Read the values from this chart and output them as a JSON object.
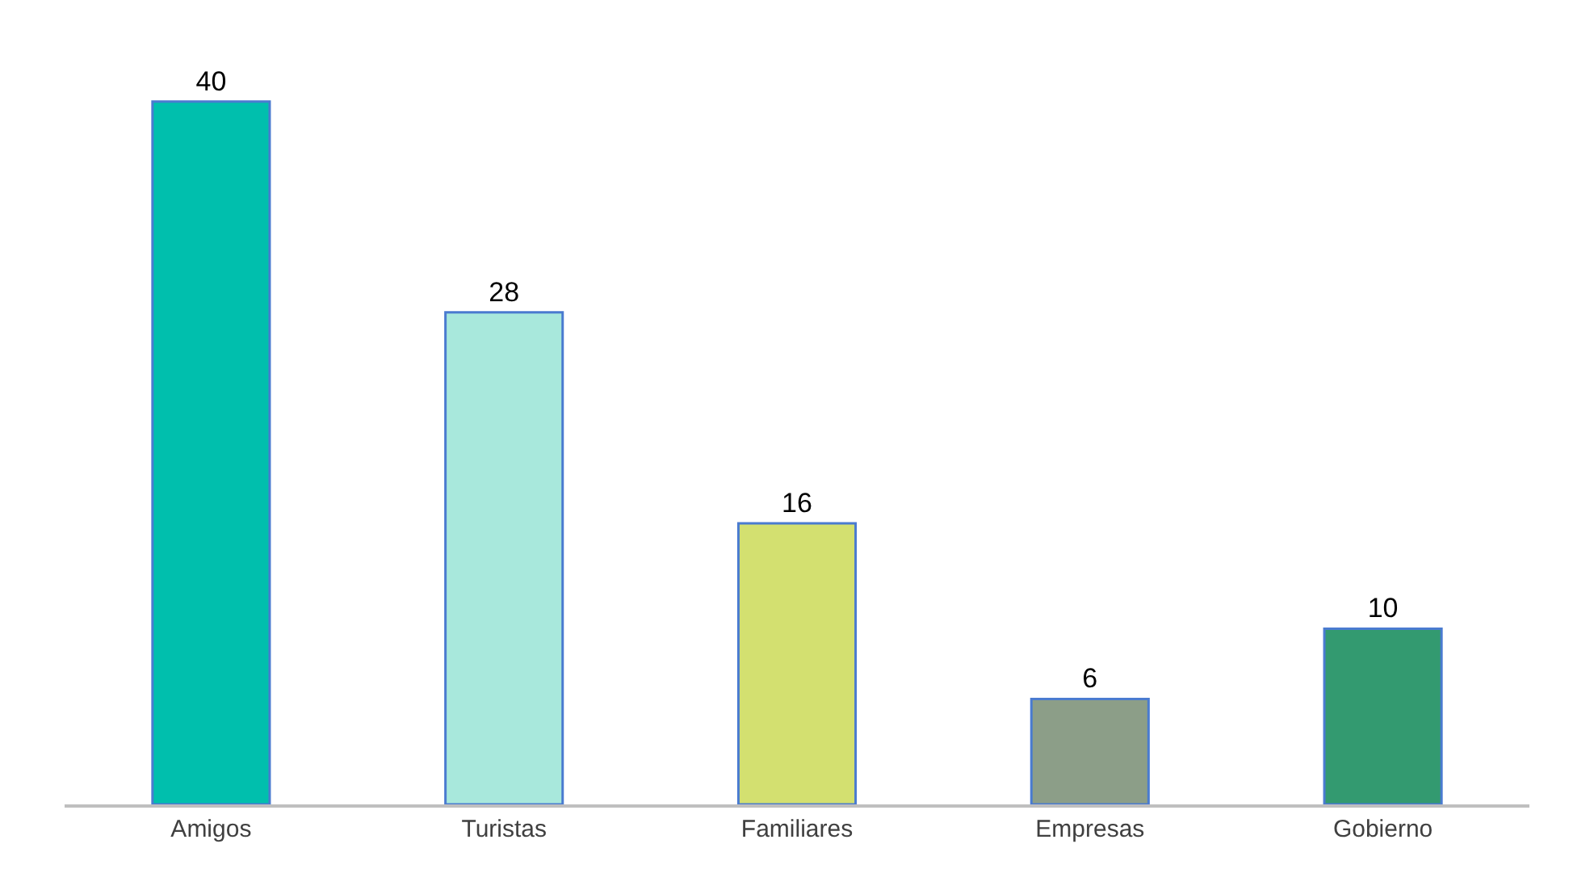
{
  "chart_data": {
    "type": "bar",
    "categories": [
      "Amigos",
      "Turistas",
      "Familiares",
      "Empresas",
      "Gobierno"
    ],
    "values": [
      40,
      28,
      16,
      6,
      10
    ],
    "colors": [
      "#00bfad",
      "#a8e8dc",
      "#d3e070",
      "#8c9e88",
      "#339a70"
    ],
    "data_labels": true
  }
}
